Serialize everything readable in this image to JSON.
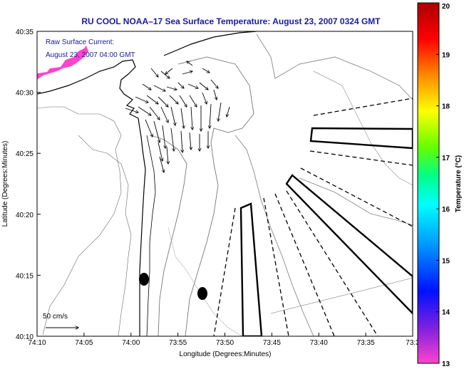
{
  "title": "RU COOL  NOAA–17  Sea Surface Temperature:  August 23, 2007 0324 GMT",
  "annotation": {
    "line1": "Raw Surface Current:",
    "line2": "August 23, 2007 04:00 GMT"
  },
  "scale_label": "50 cm/s",
  "axes": {
    "xlabel": "Longitude (Degrees:Minutes)",
    "ylabel": "Latitude (Degrees:Minutes)",
    "x_ticks": [
      "74:10",
      "74:05",
      "74:00",
      "73:55",
      "73:50",
      "73:45",
      "73:40",
      "73:35",
      "73:3"
    ],
    "y_ticks": [
      "40:35",
      "40:30",
      "40:25",
      "40:20",
      "40:15",
      "40:10"
    ]
  },
  "colorbar": {
    "label": "Temperature (°C)",
    "ticks": [
      "20",
      "19",
      "18",
      "17",
      "16",
      "15",
      "14",
      "13"
    ],
    "range": [
      13,
      20
    ],
    "colors": [
      "#ff44cc",
      "#8822dd",
      "#0011ff",
      "#0099ff",
      "#00ffff",
      "#00ff88",
      "#66ff00",
      "#ffff00",
      "#ff8800",
      "#ff0000",
      "#aa0000"
    ]
  },
  "colors": {
    "title": "#1a1aa0",
    "sst_patch": "#ff44cc",
    "land": "#fdfdfd"
  }
}
